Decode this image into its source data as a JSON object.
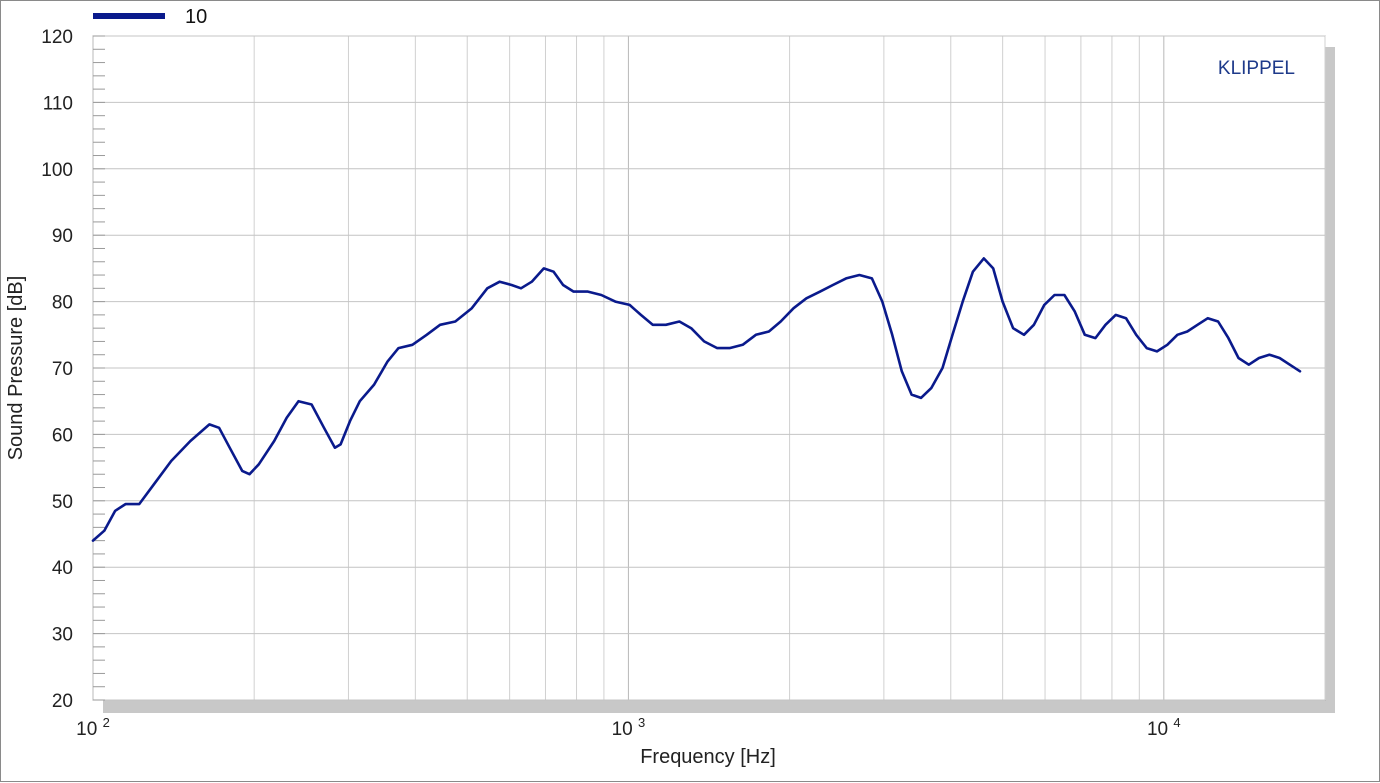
{
  "chart_data": {
    "type": "line",
    "xscale": "log",
    "xlim": [
      100,
      20000
    ],
    "ylim": [
      20,
      120
    ],
    "xlabel": "Frequency  [Hz]",
    "ylabel": "Sound Pressure  [dB]",
    "brand": "KLIPPEL",
    "x_tick_labels": [
      {
        "value": 100,
        "base": "10",
        "exp": "2"
      },
      {
        "value": 1000,
        "base": "10",
        "exp": "3"
      },
      {
        "value": 10000,
        "base": "10",
        "exp": "4"
      }
    ],
    "y_ticks": [
      20,
      30,
      40,
      50,
      60,
      70,
      80,
      90,
      100,
      110,
      120
    ],
    "legend": {
      "placement": "top-left"
    },
    "series": [
      {
        "name": "10",
        "color": "#0a1a8c",
        "points": [
          [
            100,
            44
          ],
          [
            105,
            45.5
          ],
          [
            110,
            48.5
          ],
          [
            115,
            49.5
          ],
          [
            122,
            49.5
          ],
          [
            130,
            52.5
          ],
          [
            140,
            56
          ],
          [
            152,
            59
          ],
          [
            165,
            61.5
          ],
          [
            172,
            61
          ],
          [
            180,
            58
          ],
          [
            190,
            54.5
          ],
          [
            196,
            54
          ],
          [
            204,
            55.5
          ],
          [
            218,
            59
          ],
          [
            230,
            62.5
          ],
          [
            242,
            65
          ],
          [
            256,
            64.5
          ],
          [
            270,
            61
          ],
          [
            283,
            58
          ],
          [
            290,
            58.5
          ],
          [
            302,
            62
          ],
          [
            315,
            65
          ],
          [
            335,
            67.5
          ],
          [
            355,
            71
          ],
          [
            372,
            73
          ],
          [
            395,
            73.5
          ],
          [
            420,
            75
          ],
          [
            445,
            76.5
          ],
          [
            475,
            77
          ],
          [
            510,
            79
          ],
          [
            545,
            82
          ],
          [
            575,
            83
          ],
          [
            605,
            82.5
          ],
          [
            630,
            82
          ],
          [
            660,
            83
          ],
          [
            695,
            85
          ],
          [
            725,
            84.5
          ],
          [
            755,
            82.5
          ],
          [
            790,
            81.5
          ],
          [
            840,
            81.5
          ],
          [
            890,
            81
          ],
          [
            945,
            80
          ],
          [
            1005,
            79.5
          ],
          [
            1055,
            78
          ],
          [
            1110,
            76.5
          ],
          [
            1175,
            76.5
          ],
          [
            1245,
            77
          ],
          [
            1310,
            76
          ],
          [
            1385,
            74
          ],
          [
            1465,
            73
          ],
          [
            1545,
            73
          ],
          [
            1635,
            73.5
          ],
          [
            1730,
            75
          ],
          [
            1830,
            75.5
          ],
          [
            1925,
            77
          ],
          [
            2035,
            79
          ],
          [
            2150,
            80.5
          ],
          [
            2280,
            81.5
          ],
          [
            2410,
            82.5
          ],
          [
            2550,
            83.5
          ],
          [
            2700,
            84
          ],
          [
            2850,
            83.5
          ],
          [
            2980,
            80
          ],
          [
            3110,
            75
          ],
          [
            3240,
            69.5
          ],
          [
            3380,
            66
          ],
          [
            3520,
            65.5
          ],
          [
            3680,
            67
          ],
          [
            3860,
            70
          ],
          [
            4030,
            75
          ],
          [
            4210,
            80
          ],
          [
            4400,
            84.5
          ],
          [
            4610,
            86.5
          ],
          [
            4800,
            85
          ],
          [
            5000,
            80
          ],
          [
            5230,
            76
          ],
          [
            5480,
            75
          ],
          [
            5720,
            76.5
          ],
          [
            5980,
            79.5
          ],
          [
            6250,
            81
          ],
          [
            6520,
            81
          ],
          [
            6820,
            78.5
          ],
          [
            7120,
            75
          ],
          [
            7450,
            74.5
          ],
          [
            7780,
            76.5
          ],
          [
            8130,
            78
          ],
          [
            8500,
            77.5
          ],
          [
            8880,
            75
          ],
          [
            9290,
            73
          ],
          [
            9710,
            72.5
          ],
          [
            10150,
            73.5
          ],
          [
            10600,
            75
          ],
          [
            11060,
            75.5
          ],
          [
            11560,
            76.5
          ],
          [
            12080,
            77.5
          ],
          [
            12630,
            77
          ],
          [
            13200,
            74.5
          ],
          [
            13790,
            71.5
          ],
          [
            14410,
            70.5
          ],
          [
            15060,
            71.5
          ],
          [
            15740,
            72
          ],
          [
            16450,
            71.5
          ],
          [
            17190,
            70.5
          ],
          [
            17960,
            69.5
          ]
        ]
      }
    ]
  }
}
